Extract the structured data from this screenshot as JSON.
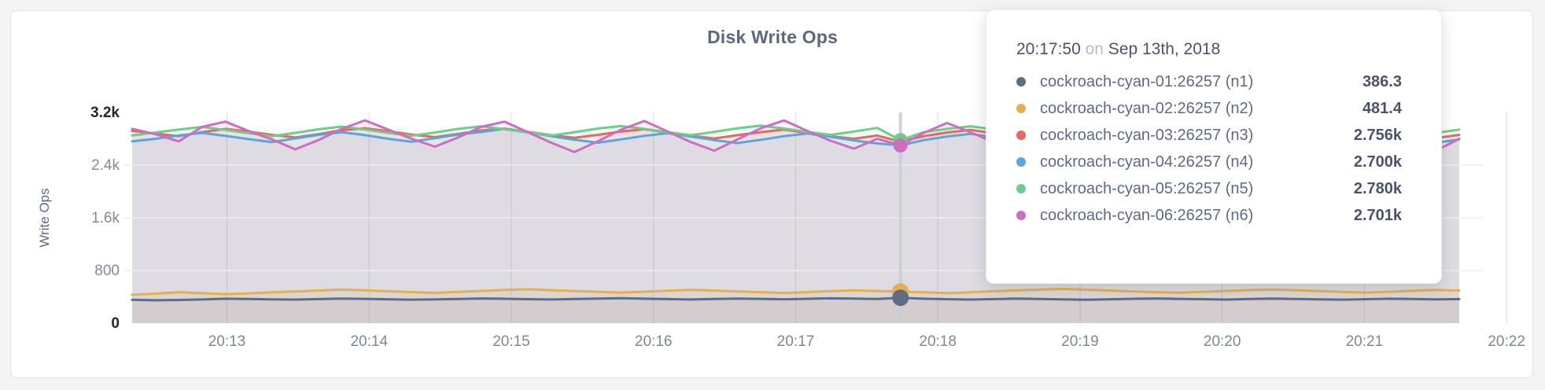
{
  "page": {
    "background": "#f4f4f5"
  },
  "chart_data": {
    "type": "line",
    "title": "Disk Write Ops",
    "ylabel": "Write Ops",
    "xlabel": "",
    "ylim": [
      0,
      3200
    ],
    "grid": true,
    "x_start_time": "20:12:20",
    "x_end_time": "20:21:50",
    "point_interval_seconds": 10,
    "x_tick_labels": [
      "20:13",
      "20:14",
      "20:15",
      "20:16",
      "20:17",
      "20:18",
      "20:19",
      "20:20",
      "20:21",
      "20:22"
    ],
    "x_first_tick_offset_s": 40,
    "x_tick_interval_s": 60,
    "x_domain_s": 570,
    "y_ticks": [
      {
        "value": 0,
        "label": "0",
        "emphasis": true
      },
      {
        "value": 800,
        "label": "800",
        "emphasis": false
      },
      {
        "value": 1600,
        "label": "1.6k",
        "emphasis": false
      },
      {
        "value": 2400,
        "label": "2.4k",
        "emphasis": false
      },
      {
        "value": 3200,
        "label": "3.2k",
        "emphasis": true
      }
    ],
    "hover_index": 33,
    "series": [
      {
        "name": "cockroach-cyan-01:26257 (n1)",
        "color": "#5f6c87",
        "values": [
          355,
          348,
          352,
          360,
          371,
          368,
          362,
          358,
          365,
          372,
          369,
          363,
          357,
          361,
          368,
          375,
          370,
          364,
          359,
          366,
          373,
          378,
          371,
          365,
          360,
          368,
          374,
          369,
          363,
          370,
          377,
          372,
          366,
          386,
          371,
          364,
          358,
          365,
          372,
          368,
          362,
          356,
          363,
          370,
          375,
          369,
          364,
          358,
          366,
          373,
          368,
          362,
          357,
          364,
          371,
          367,
          361,
          365
        ]
      },
      {
        "name": "cockroach-cyan-02:26257 (n2)",
        "color": "#e3b04b",
        "values": [
          432,
          448,
          470,
          455,
          440,
          452,
          468,
          480,
          495,
          510,
          498,
          485,
          472,
          460,
          475,
          490,
          505,
          515,
          500,
          488,
          476,
          465,
          478,
          492,
          506,
          495,
          482,
          470,
          458,
          472,
          486,
          498,
          488,
          481,
          468,
          455,
          470,
          485,
          498,
          510,
          520,
          508,
          495,
          482,
          470,
          462,
          476,
          490,
          503,
          512,
          500,
          488,
          475,
          465,
          478,
          492,
          505,
          495
        ]
      },
      {
        "name": "cockroach-cyan-03:26257 (n3)",
        "color": "#e66861",
        "values": [
          2920,
          2880,
          2840,
          2900,
          2950,
          2910,
          2860,
          2820,
          2870,
          2930,
          2960,
          2915,
          2865,
          2825,
          2875,
          2925,
          2955,
          2905,
          2855,
          2815,
          2860,
          2910,
          2945,
          2895,
          2845,
          2805,
          2855,
          2900,
          2940,
          2890,
          2840,
          2800,
          2850,
          2756,
          2840,
          2895,
          2935,
          2885,
          2835,
          2795,
          2845,
          2890,
          2930,
          2880,
          2830,
          2790,
          2840,
          2885,
          2925,
          2875,
          2825,
          2870,
          2915,
          2950,
          2900,
          2850,
          2810,
          2860
        ]
      },
      {
        "name": "cockroach-cyan-04:26257 (n4)",
        "color": "#5da4db",
        "values": [
          2760,
          2800,
          2850,
          2890,
          2845,
          2795,
          2750,
          2805,
          2860,
          2900,
          2855,
          2800,
          2755,
          2810,
          2865,
          2905,
          2950,
          2895,
          2840,
          2785,
          2740,
          2790,
          2845,
          2885,
          2835,
          2780,
          2735,
          2785,
          2840,
          2880,
          2830,
          2775,
          2730,
          2700,
          2780,
          2835,
          2875,
          2825,
          2770,
          2725,
          2775,
          2830,
          2870,
          2820,
          2765,
          2720,
          2770,
          2825,
          2865,
          2815,
          2760,
          2805,
          2850,
          2890,
          2840,
          2785,
          2740,
          2790
        ]
      },
      {
        "name": "cockroach-cyan-05:26257 (n5)",
        "color": "#6ccd8d",
        "values": [
          2850,
          2895,
          2940,
          2980,
          2935,
          2885,
          2840,
          2890,
          2945,
          2985,
          2940,
          2890,
          2845,
          2895,
          2950,
          2990,
          2945,
          2895,
          2850,
          2900,
          2955,
          2995,
          2950,
          2900,
          2855,
          2905,
          2960,
          3000,
          2955,
          2905,
          2860,
          2910,
          2965,
          2780,
          2900,
          2950,
          2990,
          2945,
          2895,
          2850,
          2900,
          2955,
          2995,
          2950,
          2900,
          2855,
          2905,
          2960,
          3000,
          2955,
          2905,
          2950,
          2995,
          3035,
          2985,
          2935,
          2890,
          2940
        ]
      },
      {
        "name": "cockroach-cyan-06:26257 (n6)",
        "color": "#cc6fc1",
        "values": [
          2950,
          2870,
          2760,
          2980,
          3060,
          2920,
          2790,
          2640,
          2780,
          2950,
          3080,
          2940,
          2800,
          2680,
          2820,
          2980,
          3060,
          2900,
          2740,
          2600,
          2760,
          2940,
          3070,
          2910,
          2750,
          2620,
          2790,
          2960,
          3080,
          2920,
          2770,
          2650,
          2800,
          2701,
          2890,
          3040,
          2900,
          2750,
          2610,
          2770,
          2940,
          3060,
          2890,
          2730,
          2590,
          2750,
          2930,
          3050,
          2880,
          2720,
          2580,
          2760,
          2950,
          3070,
          2900,
          2740,
          2620,
          2800
        ]
      }
    ]
  },
  "tooltip": {
    "time": "20:17:50",
    "on_word": "on",
    "date": "Sep 13th, 2018",
    "rows": [
      {
        "label": "cockroach-cyan-01:26257 (n1)",
        "value": "386.3",
        "color": "#5f6c87"
      },
      {
        "label": "cockroach-cyan-02:26257 (n2)",
        "value": "481.4",
        "color": "#e3b04b"
      },
      {
        "label": "cockroach-cyan-03:26257 (n3)",
        "value": "2.756k",
        "color": "#e66861"
      },
      {
        "label": "cockroach-cyan-04:26257 (n4)",
        "value": "2.700k",
        "color": "#5da4db"
      },
      {
        "label": "cockroach-cyan-05:26257 (n5)",
        "value": "2.780k",
        "color": "#6ccd8d"
      },
      {
        "label": "cockroach-cyan-06:26257 (n6)",
        "value": "2.701k",
        "color": "#cc6fc1"
      }
    ]
  }
}
